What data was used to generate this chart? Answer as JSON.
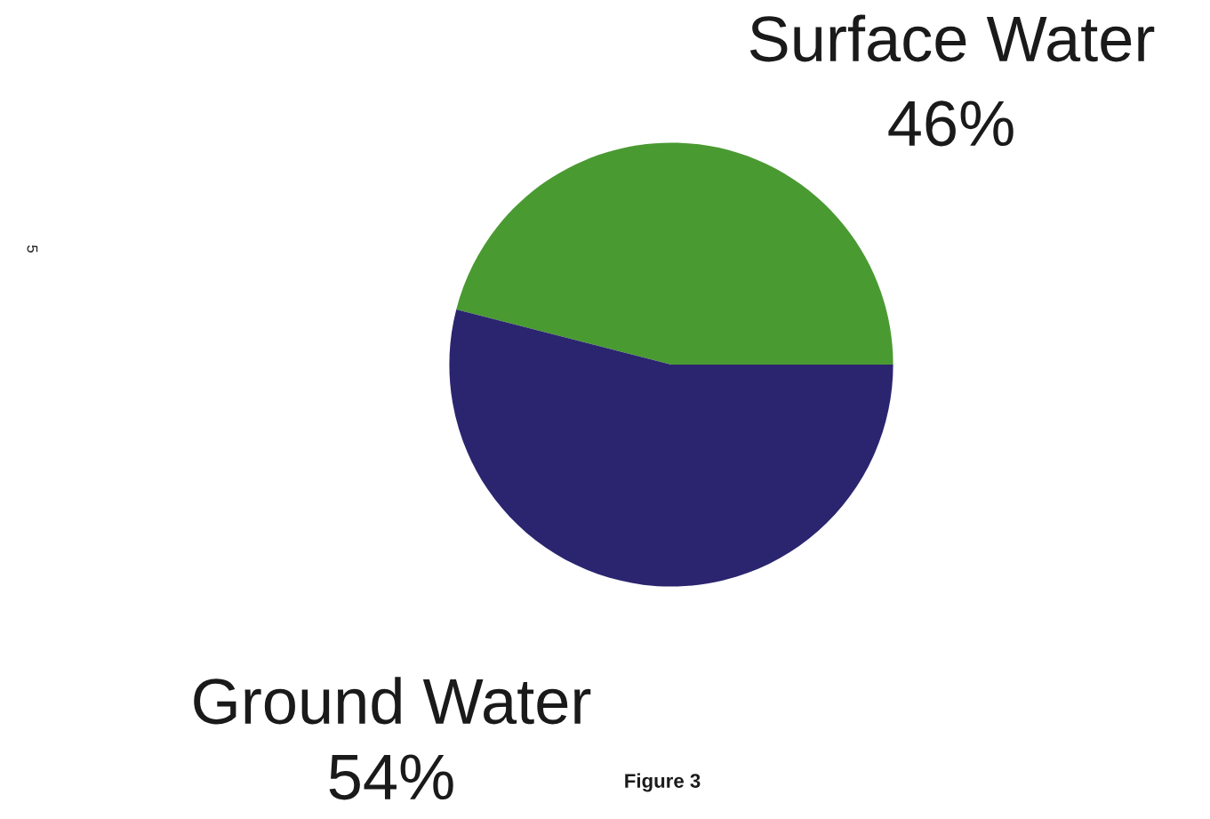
{
  "chart_data": {
    "type": "pie",
    "categories": [
      "Surface Water",
      "Ground Water"
    ],
    "values": [
      46,
      54
    ],
    "value_labels": [
      "46%",
      "54%"
    ],
    "colors": [
      "#4a9a32",
      "#2b2570"
    ],
    "annotations": [
      "Figure 3",
      "5"
    ]
  }
}
